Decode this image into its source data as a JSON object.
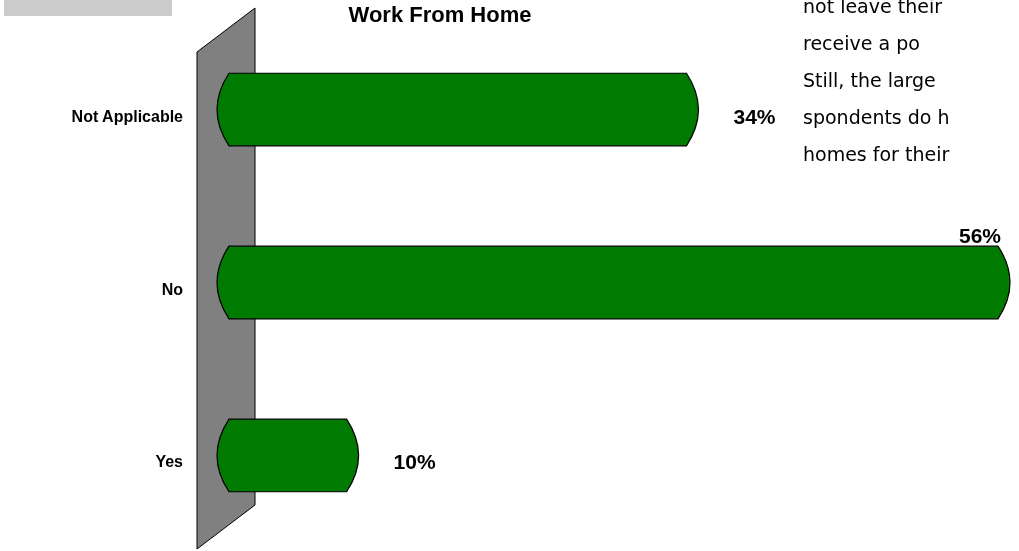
{
  "chart_data": {
    "type": "bar",
    "title": "Work From Home",
    "orientation": "horizontal",
    "categories": [
      "Not Applicable",
      "No",
      "Yes"
    ],
    "values": [
      34,
      56,
      10
    ],
    "color": "#007a00",
    "value_labels": [
      "34%",
      "56%",
      "10%"
    ],
    "annotations": [
      "not leave their",
      "receive a po",
      "Still, the large",
      "spondents do h",
      "homes for their"
    ]
  }
}
